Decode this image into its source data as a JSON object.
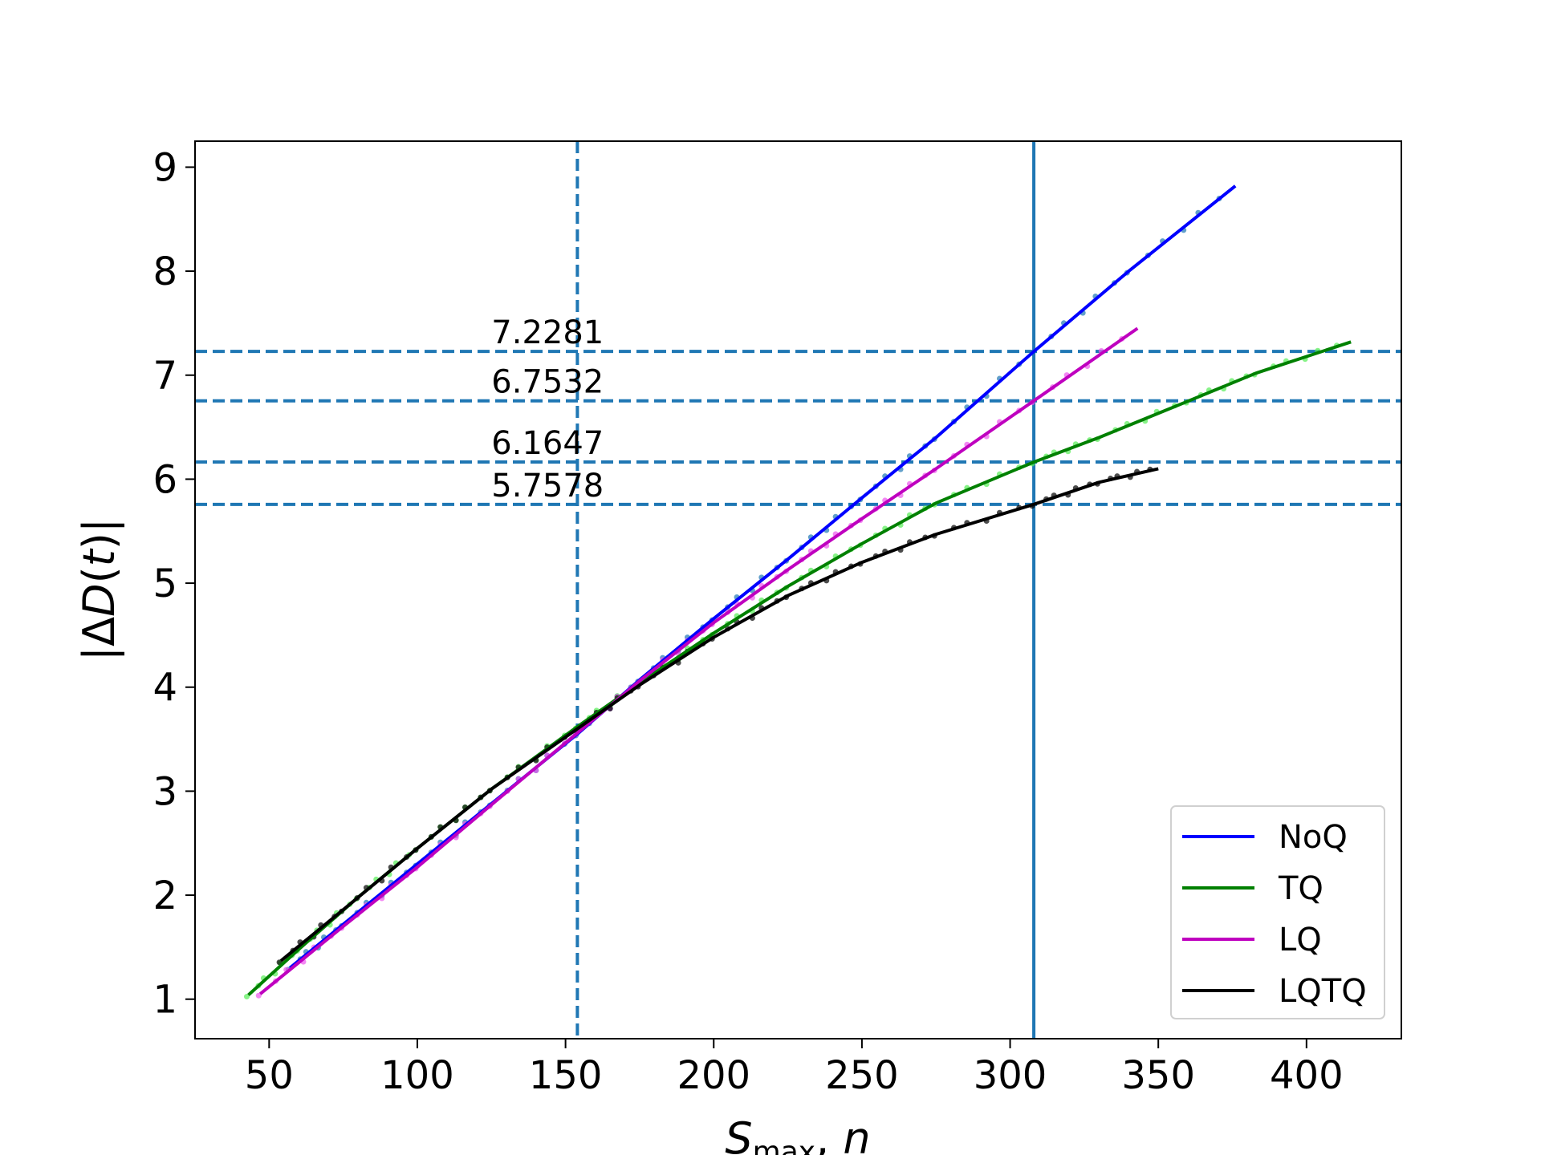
{
  "chart_data": {
    "type": "line",
    "xlabel": "S_max, n",
    "ylabel": "|ΔD(t)|",
    "xlim": [
      25,
      432
    ],
    "ylim": [
      0.62,
      9.25
    ],
    "x_ticks": [
      50,
      100,
      150,
      200,
      250,
      300,
      350,
      400
    ],
    "y_ticks": [
      1,
      2,
      3,
      4,
      5,
      6,
      7,
      8,
      9
    ],
    "grid": false,
    "legend_position": "lower-right",
    "colors": {
      "reference_lines": "#1f77b4",
      "NoQ": "#0000ff",
      "TQ": "#008000",
      "LQ": "#bf00bf",
      "LQTQ": "#000000",
      "NoQ_points": "#1f77b4",
      "TQ_points": "#55ee55",
      "LQ_points": "#ee55ee",
      "LQTQ_points": "#000000"
    },
    "vertical_lines": [
      {
        "x": 154,
        "style": "dashed"
      },
      {
        "x": 308,
        "style": "solid"
      }
    ],
    "horizontal_lines": [
      {
        "y": 7.2281,
        "label": "7.2281"
      },
      {
        "y": 6.7532,
        "label": "6.7532"
      },
      {
        "y": 6.1647,
        "label": "6.1647"
      },
      {
        "y": 5.7578,
        "label": "5.7578"
      }
    ],
    "series": [
      {
        "name": "NoQ",
        "x": [
          57,
          75,
          100,
          125,
          154,
          175,
          200,
          225,
          250,
          275,
          308,
          340,
          376
        ],
        "y": [
          1.3,
          1.72,
          2.3,
          2.88,
          3.55,
          4.07,
          4.66,
          5.23,
          5.82,
          6.4,
          7.2281,
          8.0,
          8.82
        ]
      },
      {
        "name": "TQ",
        "x": [
          43,
          60,
          80,
          100,
          125,
          154,
          175,
          200,
          225,
          250,
          275,
          308,
          330,
          360,
          383,
          415
        ],
        "y": [
          1.04,
          1.48,
          1.98,
          2.45,
          3.02,
          3.62,
          4.04,
          4.52,
          4.97,
          5.38,
          5.77,
          6.1647,
          6.4,
          6.75,
          7.02,
          7.32
        ]
      },
      {
        "name": "LQ",
        "x": [
          47,
          75,
          100,
          125,
          154,
          175,
          200,
          225,
          250,
          275,
          308,
          343
        ],
        "y": [
          1.05,
          1.7,
          2.27,
          2.87,
          3.56,
          4.06,
          4.62,
          5.13,
          5.62,
          6.1,
          6.7532,
          7.45
        ]
      },
      {
        "name": "LQTQ",
        "x": [
          54,
          75,
          100,
          125,
          154,
          175,
          200,
          225,
          250,
          275,
          308,
          330,
          350
        ],
        "y": [
          1.37,
          1.86,
          2.45,
          3.02,
          3.6,
          4.02,
          4.48,
          4.88,
          5.2,
          5.47,
          5.7578,
          5.97,
          6.1
        ]
      }
    ]
  }
}
